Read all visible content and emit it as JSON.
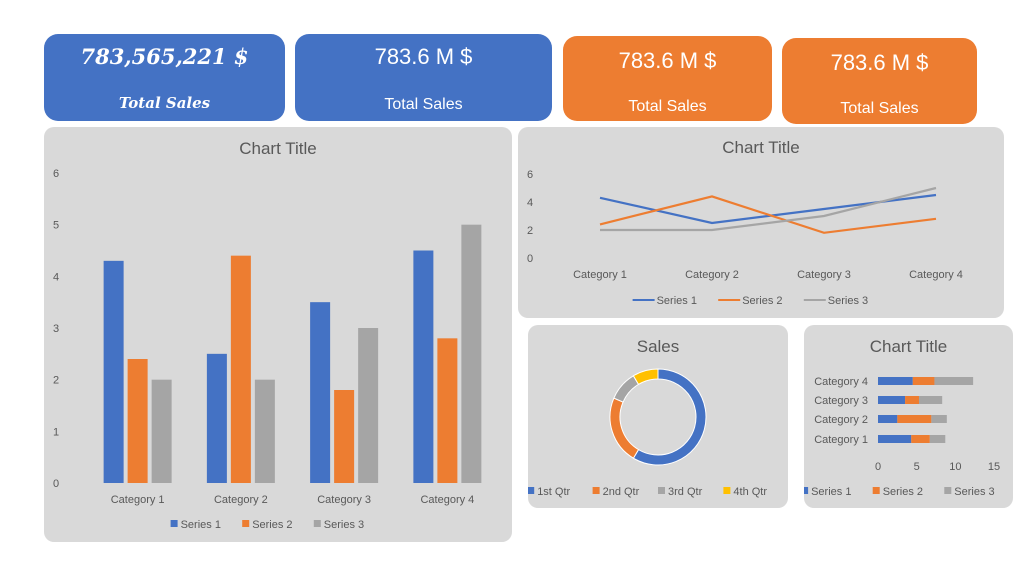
{
  "kpis": [
    {
      "value": "783,565,221 $",
      "label": "Total Sales"
    },
    {
      "value": "783.6 M $",
      "label": "Total Sales"
    },
    {
      "value": "783.6 M $",
      "label": "Total Sales"
    },
    {
      "value": "783.6 M $",
      "label": "Total Sales"
    }
  ],
  "colors": {
    "series1": "#4472c4",
    "series2": "#ed7d31",
    "series3": "#a5a5a5",
    "series4": "#ffc000"
  },
  "chart_data": [
    {
      "type": "bar",
      "title": "Chart Title",
      "categories": [
        "Category 1",
        "Category 2",
        "Category 3",
        "Category 4"
      ],
      "series": [
        {
          "name": "Series 1",
          "values": [
            4.3,
            2.5,
            3.5,
            4.5
          ]
        },
        {
          "name": "Series 2",
          "values": [
            2.4,
            4.4,
            1.8,
            2.8
          ]
        },
        {
          "name": "Series 3",
          "values": [
            2,
            2,
            3,
            5
          ]
        }
      ],
      "yticks": [
        "0",
        "1",
        "2",
        "3",
        "4",
        "5",
        "6"
      ],
      "ylim": [
        0,
        6
      ],
      "legend": "bottom"
    },
    {
      "type": "line",
      "title": "Chart Title",
      "categories": [
        "Category 1",
        "Category 2",
        "Category 3",
        "Category 4"
      ],
      "series": [
        {
          "name": "Series 1",
          "values": [
            4.3,
            2.5,
            3.5,
            4.5
          ]
        },
        {
          "name": "Series 2",
          "values": [
            2.4,
            4.4,
            1.8,
            2.8
          ]
        },
        {
          "name": "Series 3",
          "values": [
            2,
            2,
            3,
            5
          ]
        }
      ],
      "yticks": [
        "0",
        "2",
        "4",
        "6"
      ],
      "ylim": [
        0,
        6
      ],
      "legend": "bottom"
    },
    {
      "type": "pie",
      "title": "Sales",
      "labels": [
        "1st Qtr",
        "2nd Qtr",
        "3rd Qtr",
        "4th Qtr"
      ],
      "values": [
        8.2,
        3.2,
        1.4,
        1.2
      ],
      "legend": "bottom"
    },
    {
      "type": "bar",
      "orientation": "horizontal",
      "stacked": true,
      "title": "Chart Title",
      "categories": [
        "Category 1",
        "Category 2",
        "Category 3",
        "Category 4"
      ],
      "series": [
        {
          "name": "Series 1",
          "values": [
            4.3,
            2.5,
            3.5,
            4.5
          ]
        },
        {
          "name": "Series 2",
          "values": [
            2.4,
            4.4,
            1.8,
            2.8
          ]
        },
        {
          "name": "Series 3",
          "values": [
            2,
            2,
            3,
            5
          ]
        }
      ],
      "xticks": [
        "0",
        "5",
        "10",
        "15"
      ],
      "xlim": [
        0,
        15
      ],
      "legend": "bottom"
    }
  ]
}
